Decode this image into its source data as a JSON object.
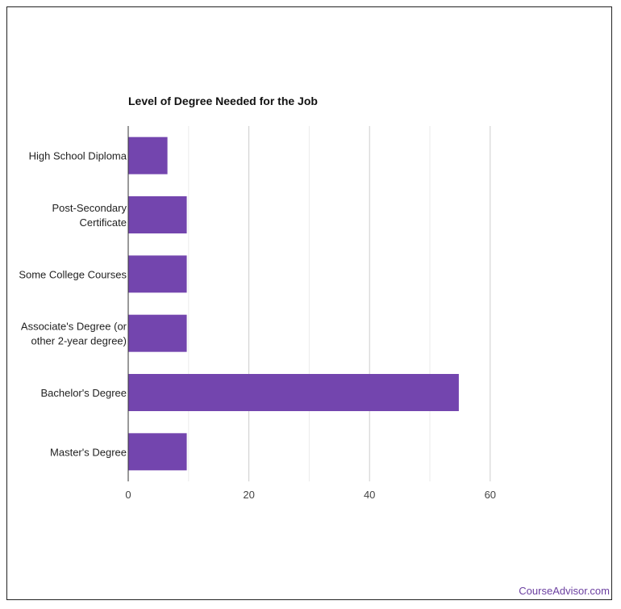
{
  "chart_data": {
    "type": "bar",
    "orientation": "horizontal",
    "title": "Level of Degree Needed for the Job",
    "xlabel": "",
    "ylabel": "",
    "categories": [
      [
        "High School Diploma"
      ],
      [
        "Post-Secondary",
        "Certificate"
      ],
      [
        "Some College Courses"
      ],
      [
        "Associate's Degree (or",
        "other 2-year degree)"
      ],
      [
        "Bachelor's Degree"
      ],
      [
        "Master's Degree"
      ]
    ],
    "values": [
      6.5,
      9.7,
      9.7,
      9.7,
      54.8,
      9.7
    ],
    "xlim": [
      0,
      80
    ],
    "xticks": [
      "0",
      "20",
      "40",
      "60"
    ],
    "grid": true,
    "bar_color": "#7345ae"
  },
  "footer": {
    "credit": "CourseAdvisor.com"
  }
}
